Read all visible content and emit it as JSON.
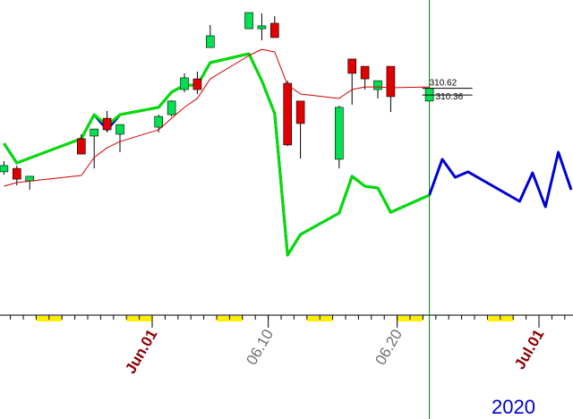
{
  "chart_data": {
    "type": "candlestick",
    "year_label": "2020",
    "xlim": [
      "2020-05-20",
      "2020-07-04"
    ],
    "ylim": [
      302,
      314
    ],
    "xticks": [
      {
        "value": "2020-06-01",
        "label": "Jun.01",
        "color": "#8b0000"
      },
      {
        "value": "2020-06-10",
        "label": "06.10",
        "color": "#707070"
      },
      {
        "value": "2020-06-20",
        "label": "06.20",
        "color": "#707070"
      },
      {
        "value": "2020-07-01",
        "label": "Jul.01",
        "color": "#8b0000"
      }
    ],
    "cursor": "2020-06-22",
    "cursor_color": "#008000",
    "weekend_color": "#ffee00",
    "price_lines": [
      310.62,
      310.36
    ],
    "candles": {
      "up_color": "#00e050",
      "down_color": "#e00000",
      "x": [
        "2020-05-20",
        "2020-05-21",
        "2020-05-22",
        "2020-05-26",
        "2020-05-27",
        "2020-05-28",
        "2020-05-29",
        "2020-06-01",
        "2020-06-02",
        "2020-06-03",
        "2020-06-04",
        "2020-06-05",
        "2020-06-08",
        "2020-06-09",
        "2020-06-10",
        "2020-06-11",
        "2020-06-12",
        "2020-06-15",
        "2020-06-16",
        "2020-06-17",
        "2020-06-18",
        "2020-06-19",
        "2020-06-22"
      ],
      "open": [
        307.42,
        307.55,
        307.07,
        308.69,
        308.79,
        309.47,
        308.86,
        309.13,
        309.61,
        310.57,
        310.98,
        312.18,
        312.9,
        312.9,
        313.11,
        310.81,
        310.13,
        307.9,
        311.74,
        311.46,
        310.57,
        311.46,
        310.13
      ],
      "high": [
        307.83,
        307.66,
        307.25,
        308.86,
        309.06,
        309.75,
        309.23,
        309.61,
        310.16,
        311.19,
        311.26,
        313.04,
        313.52,
        313.49,
        313.38,
        310.91,
        310.13,
        309.95,
        311.74,
        311.46,
        310.91,
        311.46,
        310.62
      ],
      "low": [
        307.31,
        306.9,
        306.73,
        308.1,
        307.55,
        308.93,
        308.17,
        308.93,
        309.54,
        310.47,
        310.4,
        312.18,
        312.9,
        312.46,
        312.56,
        308.41,
        307.93,
        307.55,
        309.99,
        310.57,
        310.23,
        309.71,
        310.13
      ],
      "close": [
        307.66,
        307.14,
        307.25,
        308.1,
        309.06,
        309.03,
        309.23,
        309.54,
        310.13,
        311.02,
        310.57,
        312.63,
        313.52,
        313.01,
        312.56,
        308.45,
        309.27,
        309.89,
        311.19,
        310.98,
        310.91,
        310.3,
        310.62
      ]
    },
    "series": [
      {
        "color": "#0000d0",
        "width": 3,
        "x": [
          "2020-05-20",
          "2020-05-21",
          "2020-05-26",
          "2020-05-27",
          "2020-05-28",
          "2020-05-29",
          "2020-06-01",
          "2020-06-02",
          "2020-06-03",
          "2020-06-04",
          "2020-06-05",
          "2020-06-08",
          "2020-06-09",
          "2020-06-10",
          "2020-06-11",
          "2020-06-12",
          "2020-06-15",
          "2020-06-16",
          "2020-06-17",
          "2020-06-18",
          "2020-06-19",
          "2020-06-22",
          "2020-06-23",
          "2020-06-24",
          "2020-06-25",
          "2020-06-29",
          "2020-06-30",
          "2020-07-01",
          "2020-07-02",
          "2020-07-03"
        ],
        "values": [
          308.51,
          307.76,
          308.69,
          309.61,
          309.03,
          309.61,
          309.89,
          310.47,
          310.74,
          310.74,
          311.6,
          311.94,
          310.91,
          309.65,
          304.23,
          305.02,
          305.84,
          307.25,
          306.87,
          306.8,
          305.87,
          306.53,
          307.9,
          307.21,
          307.42,
          306.29,
          307.38,
          306.08,
          308.17,
          306.73
        ]
      },
      {
        "color": "#00e000",
        "width": 3,
        "x": [
          "2020-05-20",
          "2020-05-21",
          "2020-05-26",
          "2020-05-27",
          "2020-05-28",
          "2020-05-29",
          "2020-06-01",
          "2020-06-02",
          "2020-06-03",
          "2020-06-04",
          "2020-06-05",
          "2020-06-08",
          "2020-06-09",
          "2020-06-10",
          "2020-06-11",
          "2020-06-12",
          "2020-06-15",
          "2020-06-16",
          "2020-06-17",
          "2020-06-18",
          "2020-06-19",
          "2020-06-22"
        ],
        "values": [
          308.51,
          307.76,
          308.69,
          309.61,
          309.2,
          309.61,
          309.89,
          310.47,
          310.74,
          310.74,
          311.6,
          311.94,
          310.91,
          309.65,
          304.23,
          305.02,
          305.84,
          307.25,
          306.87,
          306.8,
          305.87,
          306.53
        ]
      },
      {
        "color": "#d00000",
        "width": 1,
        "x": [
          "2020-05-20",
          "2020-05-21",
          "2020-05-26",
          "2020-05-27",
          "2020-05-28",
          "2020-05-29",
          "2020-06-01",
          "2020-06-02",
          "2020-06-03",
          "2020-06-04",
          "2020-06-05",
          "2020-06-08",
          "2020-06-09",
          "2020-06-10",
          "2020-06-11",
          "2020-06-12",
          "2020-06-15",
          "2020-06-16",
          "2020-06-17",
          "2020-06-18",
          "2020-06-19",
          "2020-06-22"
        ],
        "values": [
          306.87,
          307.01,
          307.28,
          307.97,
          308.34,
          308.58,
          309.03,
          309.47,
          309.89,
          310.23,
          310.98,
          311.87,
          312.11,
          312.01,
          310.74,
          310.4,
          310.23,
          310.57,
          310.67,
          310.67,
          310.64,
          310.67
        ]
      }
    ]
  }
}
